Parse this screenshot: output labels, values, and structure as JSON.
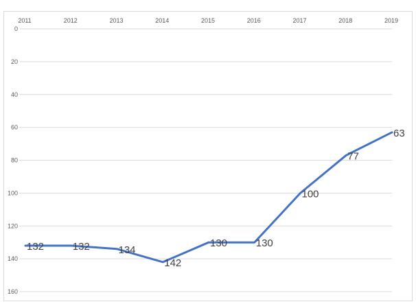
{
  "chart_data": {
    "type": "line",
    "title": "",
    "xlabel": "",
    "ylabel": "",
    "x_axis_position": "top",
    "y_axis_reversed": true,
    "ylim": [
      0,
      160
    ],
    "yticks": [
      0,
      20,
      40,
      60,
      80,
      100,
      120,
      140,
      160
    ],
    "categories": [
      "2011",
      "2012",
      "2013",
      "2014",
      "2015",
      "2016",
      "2017",
      "2018",
      "2019"
    ],
    "series": [
      {
        "values": [
          132,
          132,
          134,
          142,
          130,
          130,
          100,
          77,
          63
        ],
        "color": "#4472c4"
      }
    ],
    "data_labels_shown": true,
    "grid": true,
    "gridline_color": "#d9d9d9",
    "legend": "none"
  }
}
